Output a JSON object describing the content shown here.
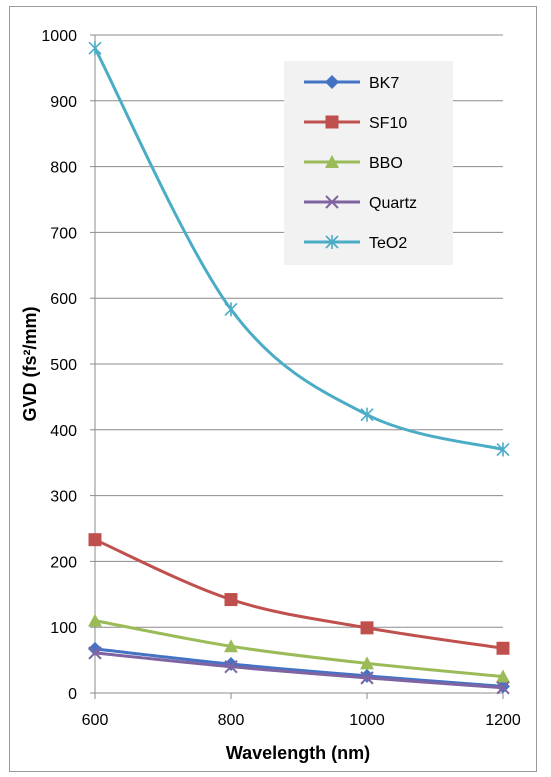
{
  "chart_data": {
    "type": "line",
    "xlabel": "Wavelength (nm)",
    "ylabel": "GVD (fs²/mm)",
    "x": [
      600,
      800,
      1000,
      1200
    ],
    "xlim": [
      600,
      1200
    ],
    "ylim": [
      0,
      1000
    ],
    "yticks": [
      0,
      100,
      200,
      300,
      400,
      500,
      600,
      700,
      800,
      900,
      1000
    ],
    "xticks": [
      600,
      800,
      1000,
      1200
    ],
    "grid": "horizontal",
    "legend_position": "top-right",
    "series": [
      {
        "name": "BK7",
        "values": [
          67,
          44,
          26,
          10
        ],
        "color": "#4472C4",
        "marker": "diamond"
      },
      {
        "name": "SF10",
        "values": [
          233,
          142,
          99,
          68
        ],
        "color": "#C0504D",
        "marker": "square"
      },
      {
        "name": "BBO",
        "values": [
          110,
          71,
          45,
          25
        ],
        "color": "#9BBB59",
        "marker": "triangle"
      },
      {
        "name": "Quartz",
        "values": [
          61,
          40,
          23,
          8
        ],
        "color": "#8064A2",
        "marker": "x"
      },
      {
        "name": "TeO2",
        "values": [
          980,
          583,
          423,
          370
        ],
        "color": "#4BACC6",
        "marker": "asterisk"
      }
    ]
  }
}
